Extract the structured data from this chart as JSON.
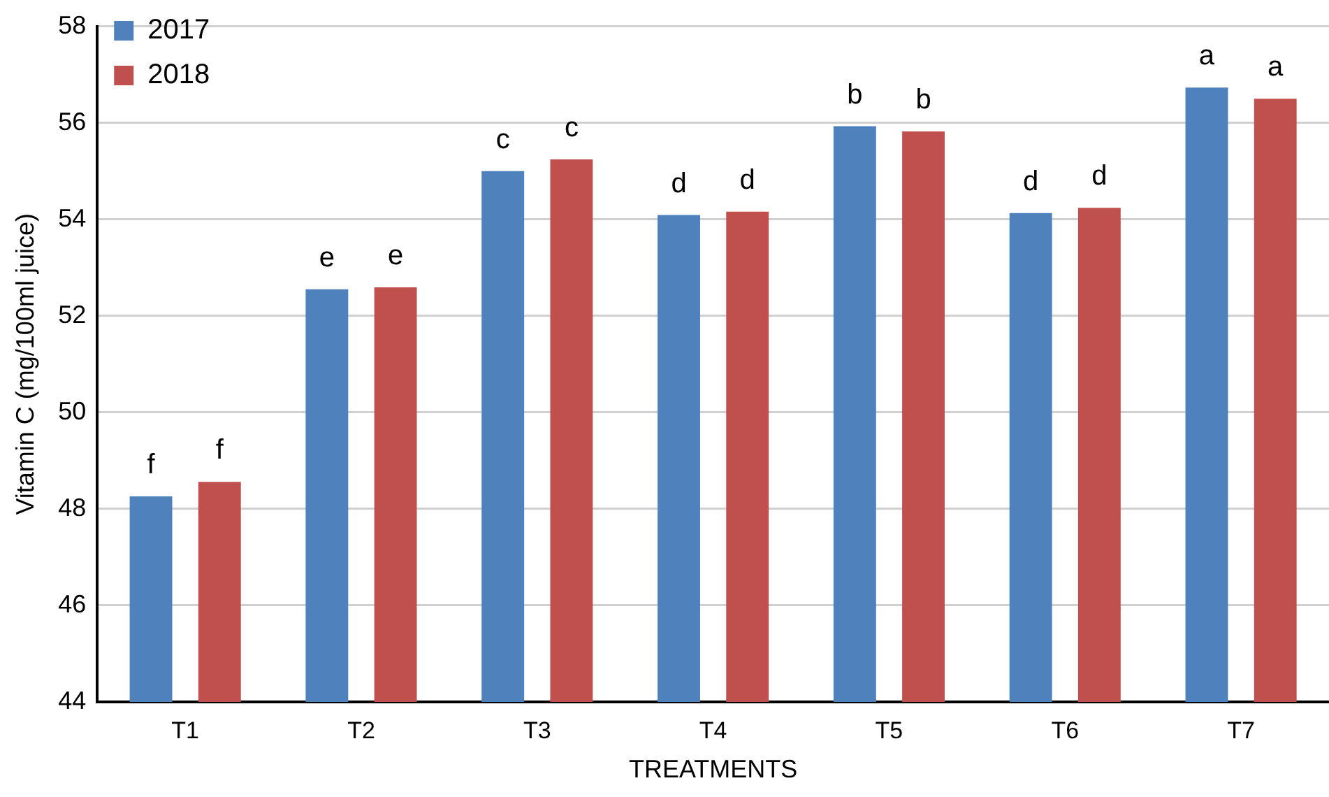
{
  "chart_data": {
    "type": "bar",
    "xlabel": "TREATMENTS",
    "ylabel": "Vitamin C (mg/100ml juice)",
    "categories": [
      "T1",
      "T2",
      "T3",
      "T4",
      "T5",
      "T6",
      "T7"
    ],
    "series": [
      {
        "name": "2017",
        "color": "#4f81bd",
        "values": [
          48.26,
          52.55,
          55.0,
          54.09,
          55.93,
          54.13,
          56.73
        ],
        "value_labels": [
          "f",
          "e",
          "c",
          "d",
          "b",
          "d",
          "a"
        ]
      },
      {
        "name": "2018",
        "color": "#c0504d",
        "values": [
          48.56,
          52.59,
          55.24,
          54.16,
          55.82,
          54.24,
          56.5
        ],
        "value_labels": [
          "f",
          "e",
          "c",
          "d",
          "b",
          "d",
          "a"
        ]
      }
    ],
    "ylim": [
      44,
      58
    ],
    "yticks": [
      44,
      46,
      48,
      50,
      52,
      54,
      56,
      58
    ],
    "grid": "y",
    "legend": "top left"
  }
}
